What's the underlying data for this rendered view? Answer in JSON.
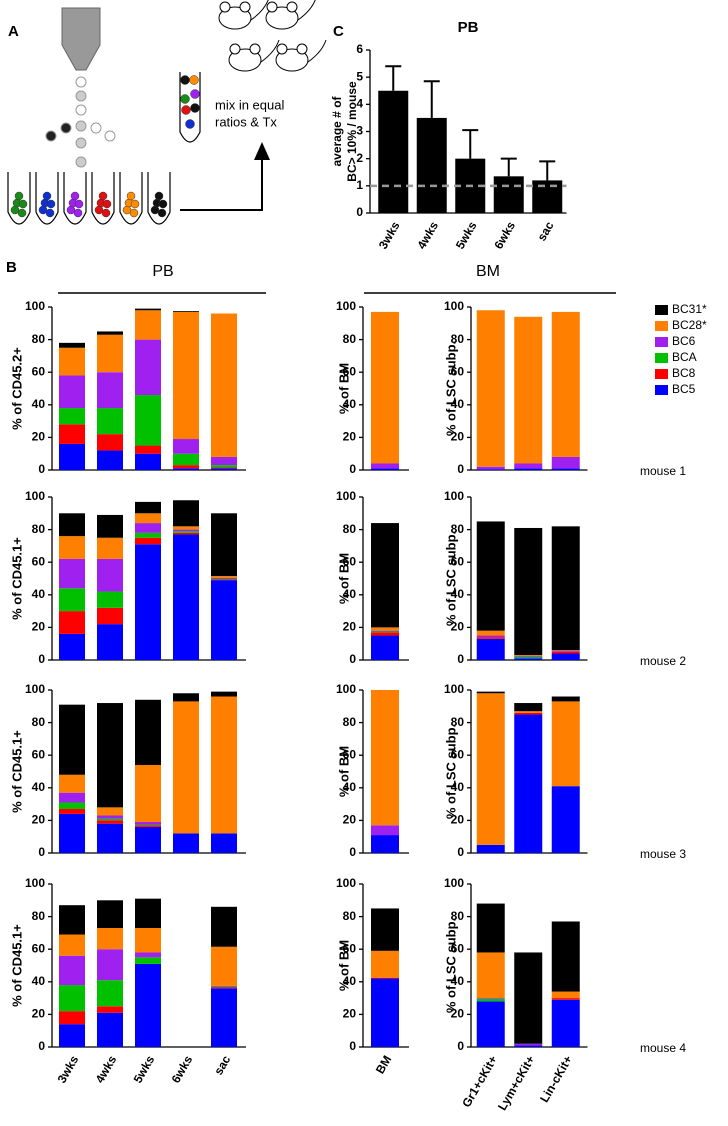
{
  "diagram": {
    "label": "A",
    "text": [
      "mix in equal",
      "ratios & Tx"
    ]
  },
  "chart_data": [
    {
      "type": "bar",
      "label": "C",
      "title": "PB",
      "ylabel": [
        "average # of",
        "BC> 10% / mouse"
      ],
      "categories": [
        "3wks",
        "4wks",
        "5wks",
        "6wks",
        "sac"
      ],
      "values": [
        4.5,
        3.5,
        2,
        1.35,
        1.2
      ],
      "errors": [
        0.9,
        1.35,
        1.05,
        0.65,
        0.7
      ],
      "color": "#000000",
      "ref_line": 1,
      "ylim": [
        0,
        6
      ],
      "yticks": [
        0,
        1,
        2,
        3,
        4,
        5,
        6
      ]
    },
    {
      "type": "stacked_bar_grid",
      "label": "B",
      "column_titles": [
        "PB",
        "BM"
      ],
      "series": [
        {
          "name": "BC31*",
          "color": "#000000"
        },
        {
          "name": "BC28*",
          "color": "#ff8000"
        },
        {
          "name": "BC6",
          "color": "#a020f0"
        },
        {
          "name": "BCA",
          "color": "#00c000"
        },
        {
          "name": "BC8",
          "color": "#ff0000"
        },
        {
          "name": "BC5",
          "color": "#0000ff"
        }
      ],
      "column_categories": [
        [
          "3wks",
          "4wks",
          "5wks",
          "6wks",
          "sac"
        ],
        [
          "BM"
        ],
        [
          "Gr1+cKit+",
          "Lym+cKit+",
          "Lin-cKit+"
        ]
      ],
      "ylim": [
        0,
        100
      ],
      "yticks": [
        0,
        20,
        40,
        60,
        80,
        100
      ],
      "rows": [
        {
          "label": "mouse 1",
          "panels": [
            {
              "ylabel": "% of CD45.2+",
              "values": [
                [
                  3,
                  2,
                  1,
                  0.5,
                  0
                ],
                [
                  17,
                  23,
                  18,
                  78,
                  88
                ],
                [
                  20,
                  22,
                  34,
                  9,
                  5
                ],
                [
                  10,
                  16,
                  31,
                  7,
                  1.5
                ],
                [
                  12,
                  10,
                  5,
                  2,
                  0.5
                ],
                [
                  16,
                  12,
                  10,
                  1,
                  1
                ]
              ]
            },
            {
              "ylabel": "% of BM",
              "values": [
                [
                  0
                ],
                [
                  93
                ],
                [
                  3
                ],
                [
                  0
                ],
                [
                  0
                ],
                [
                  1
                ]
              ]
            },
            {
              "ylabel": "% of LSC subp.",
              "values": [
                [
                  0,
                  0,
                  0
                ],
                [
                  96,
                  90,
                  89
                ],
                [
                  1.5,
                  3,
                  7
                ],
                [
                  0,
                  0,
                  0
                ],
                [
                  0,
                  0,
                  0
                ],
                [
                  0.5,
                  1,
                  1
                ]
              ]
            }
          ]
        },
        {
          "label": "mouse 2",
          "panels": [
            {
              "ylabel": "% of CD45.1+",
              "values": [
                [
                  14,
                  14,
                  7,
                  16,
                  38.5
                ],
                [
                  14,
                  13,
                  6,
                  2,
                  1
                ],
                [
                  18,
                  20,
                  6,
                  1,
                  0.5
                ],
                [
                  14,
                  10,
                  3,
                  1,
                  0.5
                ],
                [
                  14,
                  10,
                  4,
                  1,
                  0.5
                ],
                [
                  16,
                  22,
                  71,
                  77,
                  49
                ]
              ]
            },
            {
              "ylabel": "% of BM",
              "values": [
                [
                  64
                ],
                [
                  2
                ],
                [
                  0.5
                ],
                [
                  0.5
                ],
                [
                  2
                ],
                [
                  15
                ]
              ]
            },
            {
              "ylabel": "% of LSC subp.",
              "values": [
                [
                  67,
                  78,
                  76
                ],
                [
                  3,
                  0.5,
                  0.5
                ],
                [
                  1,
                  0.5,
                  0.5
                ],
                [
                  0,
                  1,
                  0
                ],
                [
                  1,
                  0,
                  1
                ],
                [
                  13,
                  1,
                  4
                ]
              ]
            }
          ]
        },
        {
          "label": "mouse 3",
          "panels": [
            {
              "ylabel": "% of CD45.1+",
              "values": [
                [
                  43,
                  64,
                  40,
                  5,
                  3
                ],
                [
                  11,
                  5,
                  35,
                  81,
                  84
                ],
                [
                  6,
                  2,
                  1.5,
                  0,
                  0
                ],
                [
                  4,
                  1,
                  0.5,
                  0,
                  0
                ],
                [
                  3,
                  2,
                  1,
                  0,
                  0
                ],
                [
                  24,
                  18,
                  16,
                  12,
                  12
                ]
              ]
            },
            {
              "ylabel": "% of BM",
              "values": [
                [
                  0
                ],
                [
                  83
                ],
                [
                  6
                ],
                [
                  0
                ],
                [
                  0
                ],
                [
                  11
                ]
              ]
            },
            {
              "ylabel": "% of LSC subp.",
              "values": [
                [
                  1,
                  5,
                  3
                ],
                [
                  93,
                  1,
                  52
                ],
                [
                  0,
                  0,
                  0
                ],
                [
                  0,
                  0,
                  0
                ],
                [
                  0,
                  1,
                  0
                ],
                [
                  5,
                  85,
                  41
                ]
              ]
            }
          ]
        },
        {
          "label": "mouse 4",
          "panels": [
            {
              "ylabel": "% of CD45.1+",
              "values": [
                [
                  18,
                  17,
                  18,
                  null,
                  24.5
                ],
                [
                  13,
                  13,
                  15,
                  null,
                  24
                ],
                [
                  18,
                  19,
                  3,
                  null,
                  0.5
                ],
                [
                  16,
                  16,
                  4,
                  null,
                  0.5
                ],
                [
                  8,
                  4,
                  0,
                  null,
                  0.5
                ],
                [
                  14,
                  21,
                  51,
                  null,
                  36
                ]
              ]
            },
            {
              "ylabel": "% of BM",
              "values": [
                [
                  26
                ],
                [
                  16.5
                ],
                [
                  0
                ],
                [
                  0
                ],
                [
                  0.5
                ],
                [
                  42
                ]
              ]
            },
            {
              "ylabel": "% of LSC subp.",
              "values": [
                [
                  30,
                  56,
                  43
                ],
                [
                  28,
                  0,
                  4
                ],
                [
                  0.5,
                  1,
                  0
                ],
                [
                  1.5,
                  0,
                  0
                ],
                [
                  0,
                  0,
                  1
                ],
                [
                  28,
                  1,
                  29
                ]
              ]
            }
          ]
        }
      ]
    }
  ]
}
